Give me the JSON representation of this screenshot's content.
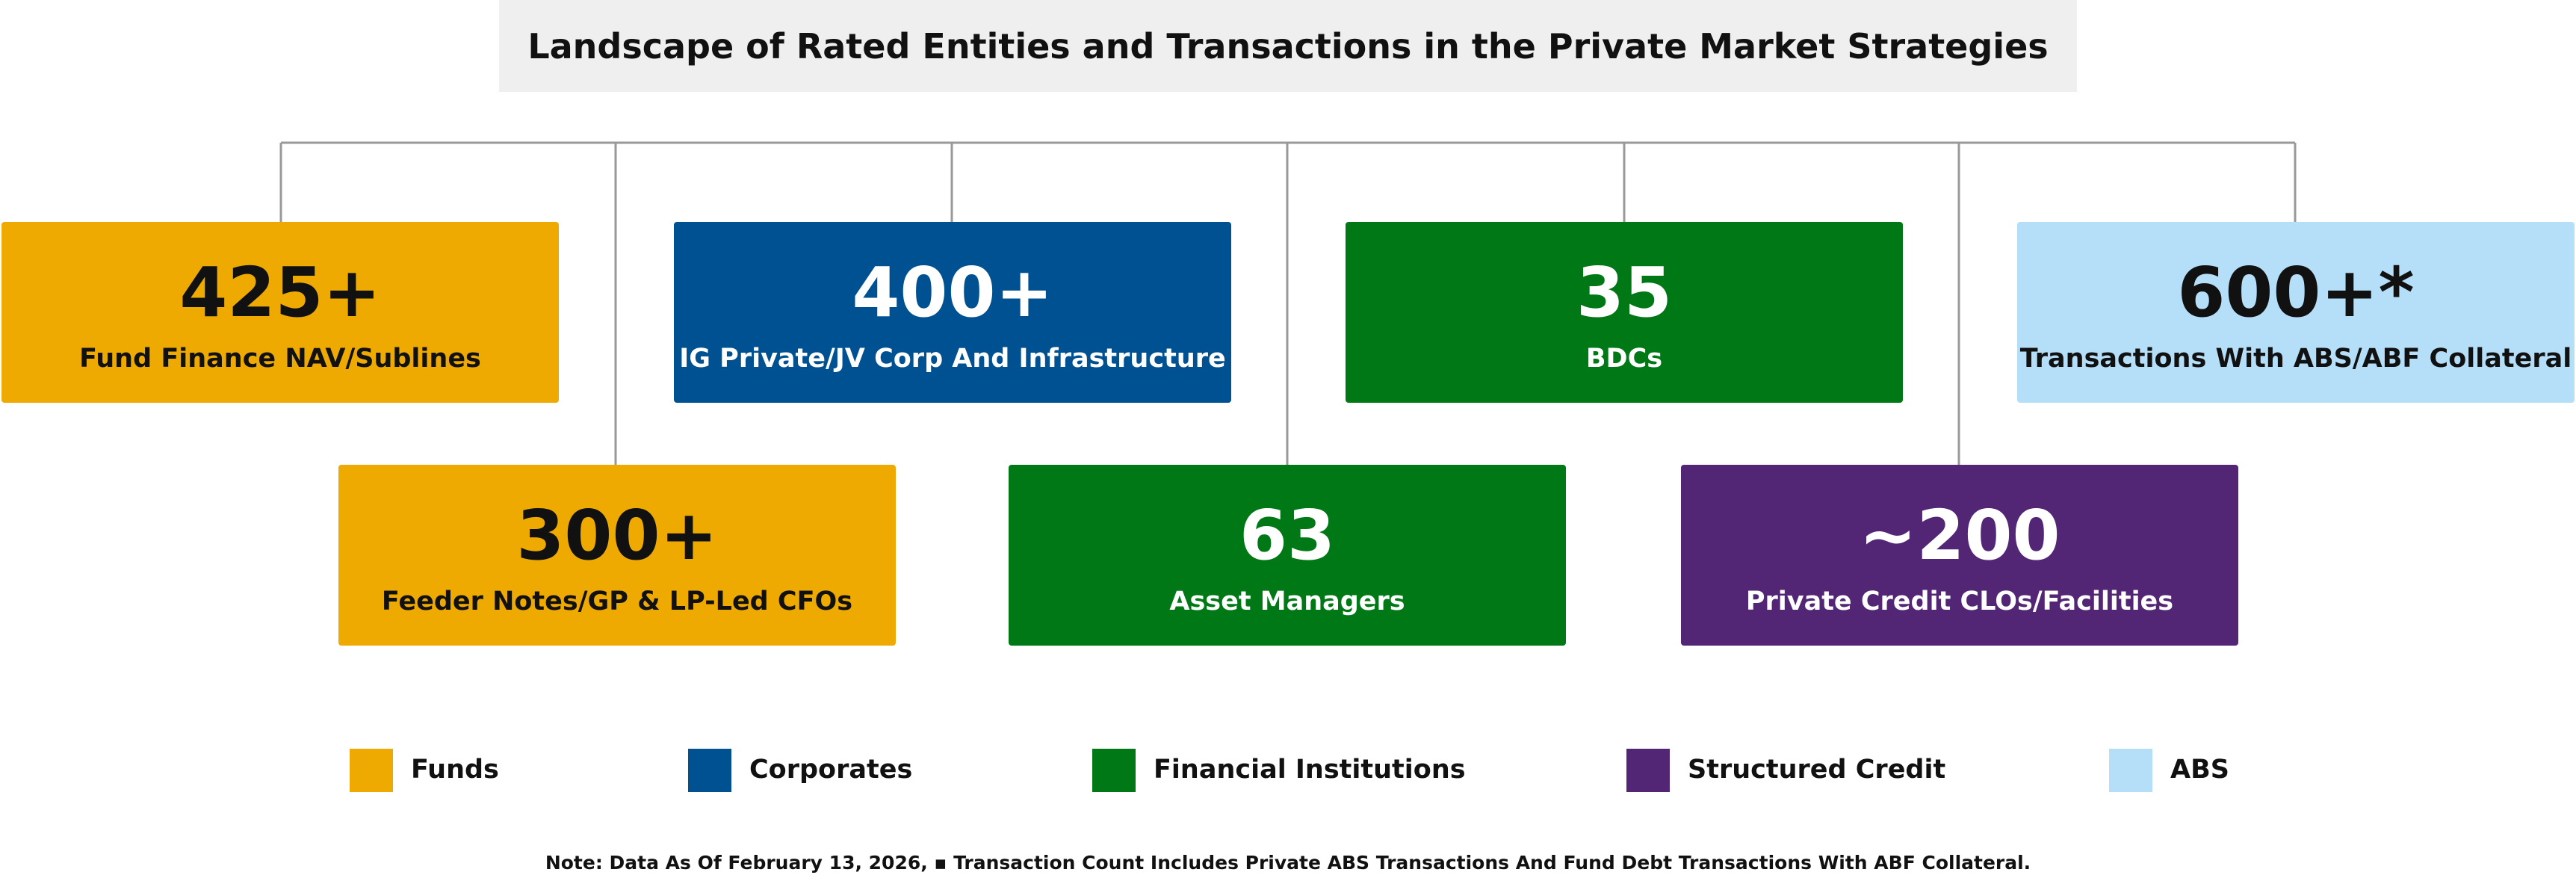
{
  "header": {
    "title": "Landscape of Rated Entities and Transactions in the Private Market Strategies"
  },
  "boxes": [
    {
      "value": "425+",
      "label": "Fund Finance NAV/Sublines",
      "color": "#eeaa00",
      "text_color": "#111111"
    },
    {
      "value": "300+",
      "label": "Feeder Notes/GP & LP-Led CFOs",
      "color": "#eeaa00",
      "text_color": "#111111"
    },
    {
      "value": "400+",
      "label": "IG Private/JV Corp And Infrastructure",
      "color": "#005192",
      "text_color": "#ffffff"
    },
    {
      "value": "63",
      "label": "Asset Managers",
      "color": "#007816",
      "text_color": "#ffffff"
    },
    {
      "value": "35",
      "label": "BDCs",
      "color": "#007816",
      "text_color": "#ffffff"
    },
    {
      "value": "~200",
      "label": "Private Credit CLOs/Facilities",
      "color": "#522575",
      "text_color": "#ffffff"
    },
    {
      "value": "600+*",
      "label": "Transactions With ABS/ABF Collateral",
      "color": "#b5def9",
      "text_color": "#111111"
    }
  ],
  "legend": [
    {
      "name": "Funds",
      "color": "#eeaa00"
    },
    {
      "name": "Corporates",
      "color": "#005192"
    },
    {
      "name": "Financial Institutions",
      "color": "#007816"
    },
    {
      "name": "Structured Credit",
      "color": "#522575"
    },
    {
      "name": "ABS",
      "color": "#b5def9"
    }
  ],
  "note": "Note: Data As Of February 13, 2026, ▪ Transaction Count Includes Private ABS Transactions And Fund Debt Transactions With ABF Collateral."
}
